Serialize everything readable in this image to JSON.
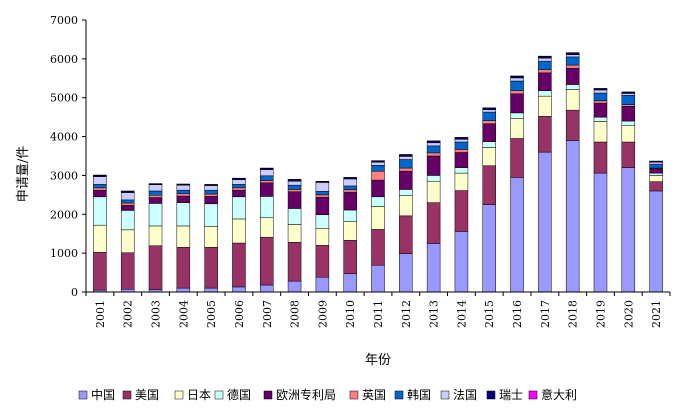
{
  "chart_data": {
    "type": "bar",
    "stacked": true,
    "title": "",
    "xlabel": "年份",
    "ylabel": "申请量/件",
    "ylim": [
      0,
      7000
    ],
    "yticks": [
      0,
      1000,
      2000,
      3000,
      4000,
      5000,
      6000,
      7000
    ],
    "grid": false,
    "legend_position": "bottom",
    "categories": [
      "2001",
      "2002",
      "2003",
      "2004",
      "2005",
      "2006",
      "2007",
      "2008",
      "2009",
      "2010",
      "2011",
      "2012",
      "2013",
      "2014",
      "2015",
      "2016",
      "2017",
      "2018",
      "2019",
      "2020",
      "2021"
    ],
    "series": [
      {
        "name": "中国",
        "color": "#9999ff",
        "values": [
          50,
          70,
          60,
          100,
          100,
          130,
          180,
          280,
          380,
          470,
          690,
          990,
          1250,
          1560,
          2250,
          2950,
          3600,
          3900,
          3060,
          3200,
          2600
        ]
      },
      {
        "name": "美国",
        "color": "#993366",
        "values": [
          970,
          940,
          1130,
          1050,
          1050,
          1130,
          1230,
          1000,
          820,
          860,
          920,
          970,
          1050,
          1050,
          1000,
          1000,
          920,
          780,
          800,
          660,
          240
        ]
      },
      {
        "name": "日本",
        "color": "#ffffcc",
        "values": [
          700,
          590,
          510,
          550,
          540,
          620,
          500,
          460,
          440,
          480,
          590,
          520,
          550,
          450,
          470,
          520,
          520,
          530,
          530,
          420,
          160
        ]
      },
      {
        "name": "德国",
        "color": "#ccffff",
        "values": [
          730,
          500,
          580,
          600,
          580,
          570,
          550,
          410,
          350,
          300,
          250,
          160,
          150,
          140,
          150,
          140,
          140,
          130,
          110,
          120,
          60
        ]
      },
      {
        "name": "欧洲专利局",
        "color": "#660066",
        "values": [
          170,
          130,
          150,
          170,
          190,
          170,
          350,
          430,
          450,
          460,
          430,
          470,
          500,
          390,
          460,
          490,
          460,
          420,
          360,
          380,
          110
        ]
      },
      {
        "name": "英国",
        "color": "#ff8080",
        "values": [
          60,
          60,
          60,
          60,
          60,
          60,
          60,
          60,
          60,
          60,
          230,
          80,
          80,
          80,
          80,
          80,
          80,
          80,
          60,
          40,
          20
        ]
      },
      {
        "name": "韩国",
        "color": "#0066cc",
        "values": [
          90,
          80,
          110,
          90,
          100,
          90,
          120,
          110,
          90,
          100,
          150,
          220,
          180,
          190,
          220,
          250,
          220,
          210,
          200,
          240,
          100
        ]
      },
      {
        "name": "法国",
        "color": "#ccccff",
        "values": [
          200,
          190,
          160,
          130,
          120,
          120,
          160,
          100,
          230,
          180,
          80,
          80,
          80,
          70,
          60,
          80,
          80,
          60,
          80,
          50,
          50
        ]
      },
      {
        "name": "瑞士",
        "color": "#000080",
        "values": [
          30,
          30,
          20,
          20,
          20,
          30,
          30,
          40,
          20,
          30,
          30,
          40,
          40,
          40,
          40,
          40,
          40,
          40,
          30,
          30,
          20
        ]
      },
      {
        "name": "意大利",
        "color": "#ff00ff",
        "values": [
          10,
          10,
          10,
          10,
          10,
          10,
          10,
          10,
          10,
          10,
          10,
          10,
          10,
          10,
          10,
          10,
          10,
          10,
          10,
          10,
          10
        ]
      }
    ]
  }
}
